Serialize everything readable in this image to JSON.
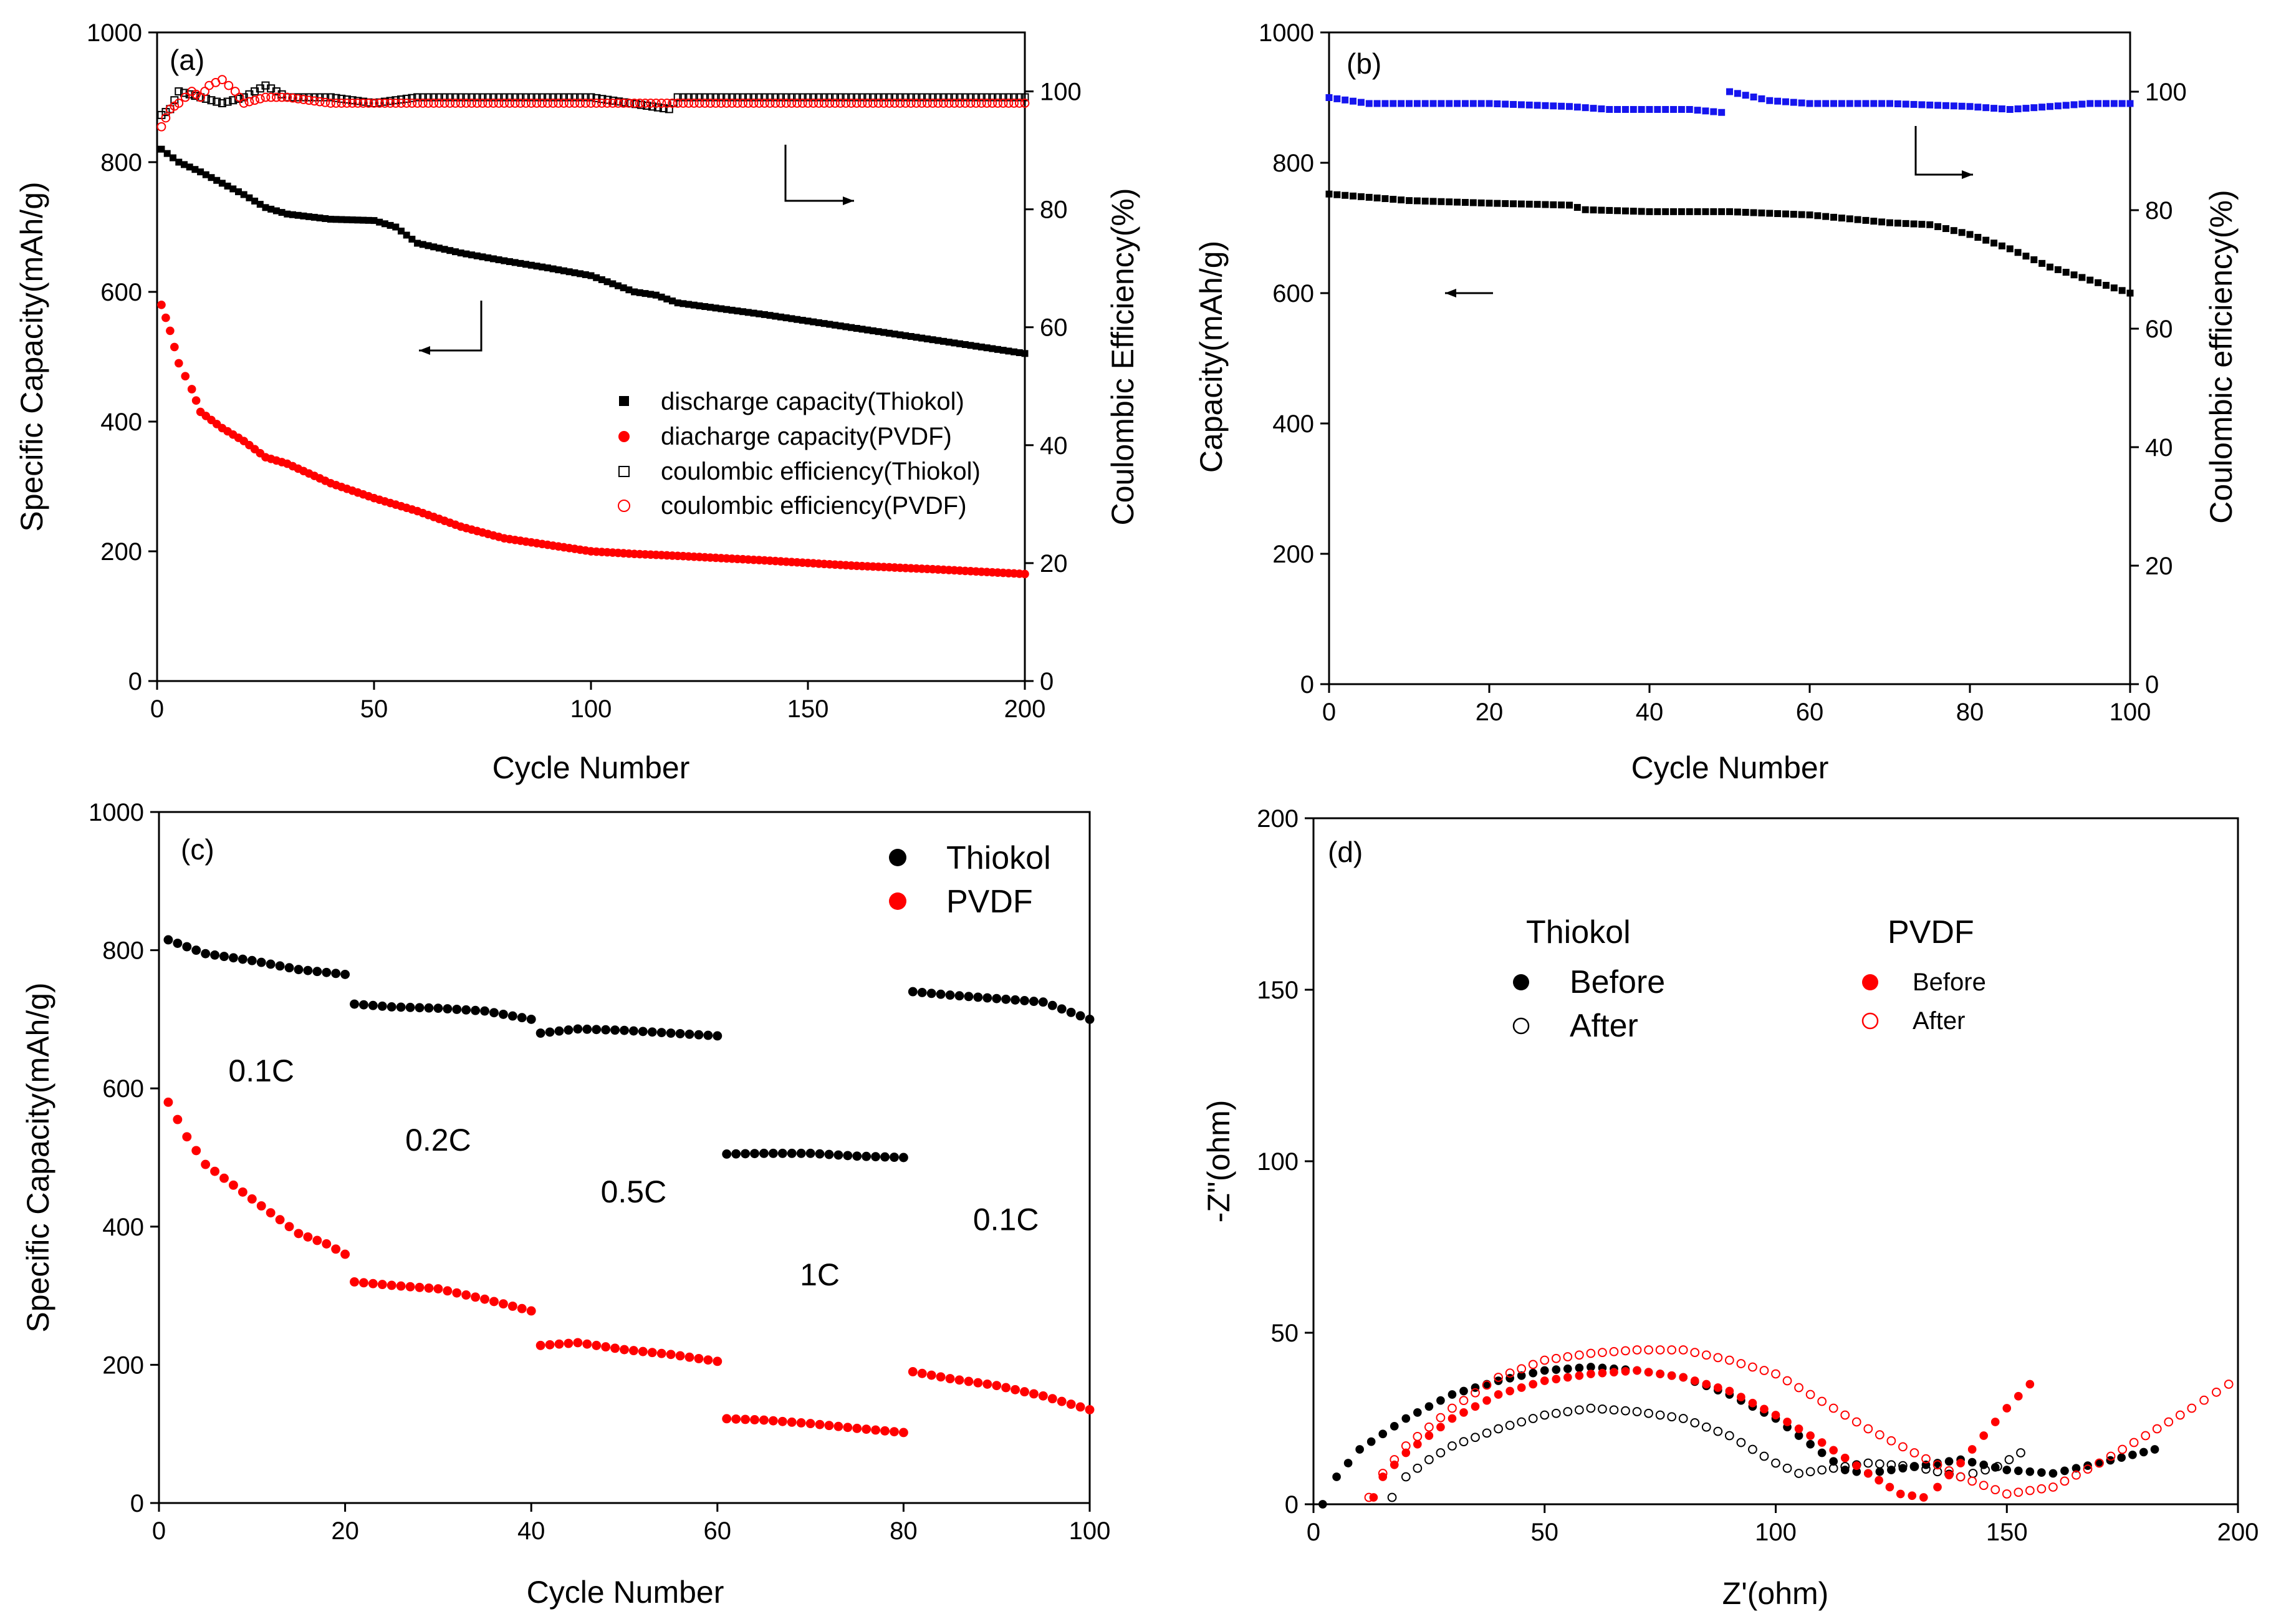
{
  "chart_data": [
    {
      "id": "a",
      "type": "scatter",
      "panel_label": "(a)",
      "xlabel": "Cycle Number",
      "ylabel": "Specific Capacity(mAh/g)",
      "y2label": "Coulombic Efficiency(%)",
      "xlim": [
        0,
        200
      ],
      "ylim": [
        0,
        1000
      ],
      "y2lim": [
        0,
        110
      ],
      "xticks": [
        0,
        50,
        100,
        150,
        200
      ],
      "yticks": [
        0,
        200,
        400,
        600,
        800,
        1000
      ],
      "y2ticks": [
        0,
        20,
        40,
        60,
        80,
        100
      ],
      "series": [
        {
          "name": "discharge capacity(Thiokol)",
          "axis": "left",
          "marker": "filled-square",
          "color": "#000000",
          "x": [
            1,
            5,
            10,
            20,
            25,
            30,
            40,
            50,
            55,
            60,
            70,
            80,
            90,
            100,
            110,
            115,
            120,
            140,
            160,
            180,
            200
          ],
          "y": [
            820,
            800,
            785,
            750,
            730,
            720,
            712,
            710,
            700,
            675,
            660,
            648,
            637,
            625,
            600,
            595,
            583,
            565,
            545,
            525,
            505
          ]
        },
        {
          "name": "diacharge capacity(PVDF)",
          "axis": "left",
          "marker": "filled-circle",
          "color": "#ff0000",
          "x": [
            1,
            3,
            5,
            8,
            10,
            15,
            20,
            25,
            30,
            40,
            50,
            60,
            70,
            80,
            90,
            100,
            110,
            120,
            140,
            160,
            180,
            200
          ],
          "y": [
            580,
            540,
            490,
            450,
            415,
            390,
            370,
            345,
            335,
            305,
            282,
            262,
            238,
            220,
            210,
            200,
            196,
            193,
            186,
            178,
            172,
            165
          ]
        },
        {
          "name": "coulombic efficiency(Thiokol)",
          "axis": "right",
          "marker": "open-square",
          "color": "#000000",
          "x": [
            1,
            3,
            5,
            10,
            15,
            20,
            25,
            30,
            40,
            50,
            60,
            80,
            100,
            118,
            120,
            140,
            160,
            180,
            200
          ],
          "y": [
            96,
            97,
            100,
            99,
            98,
            99,
            101,
            99,
            99,
            98,
            99,
            99,
            99,
            97,
            99,
            99,
            99,
            99,
            99
          ]
        },
        {
          "name": "coulombic efficiency(PVDF)",
          "axis": "right",
          "marker": "open-circle",
          "color": "#ff0000",
          "x": [
            1,
            3,
            5,
            8,
            10,
            12,
            15,
            18,
            20,
            25,
            30,
            40,
            50,
            60,
            80,
            100,
            120,
            140,
            160,
            180,
            200
          ],
          "y": [
            94,
            97,
            98,
            100,
            99,
            101,
            102,
            100,
            98,
            99,
            99,
            98,
            98,
            98,
            98,
            98,
            98,
            98,
            98,
            98,
            98
          ]
        }
      ]
    },
    {
      "id": "b",
      "type": "scatter",
      "panel_label": "(b)",
      "xlabel": "Cycle Number",
      "ylabel": "Capacity(mAh/g)",
      "y2label": "Coulombic efficiency(%)",
      "xlim": [
        0,
        100
      ],
      "ylim": [
        0,
        1000
      ],
      "y2lim": [
        0,
        110
      ],
      "xticks": [
        0,
        20,
        40,
        60,
        80,
        100
      ],
      "yticks": [
        0,
        200,
        400,
        600,
        800,
        1000
      ],
      "y2ticks": [
        0,
        20,
        40,
        60,
        80,
        100
      ],
      "series": [
        {
          "name": "capacity",
          "axis": "left",
          "marker": "filled-square",
          "color": "#000000",
          "x": [
            0,
            10,
            20,
            30,
            32,
            40,
            50,
            60,
            70,
            75,
            80,
            85,
            90,
            95,
            100
          ],
          "y": [
            752,
            742,
            738,
            735,
            728,
            725,
            725,
            720,
            708,
            705,
            690,
            668,
            640,
            620,
            600
          ]
        },
        {
          "name": "coulombic efficiency",
          "axis": "right",
          "marker": "filled-square",
          "color": "#1515ee",
          "x": [
            0,
            5,
            10,
            20,
            30,
            35,
            40,
            45,
            49,
            50,
            55,
            60,
            70,
            80,
            85,
            90,
            95,
            100
          ],
          "y": [
            99,
            98,
            98,
            98,
            97.5,
            97,
            97,
            97,
            96.5,
            100,
            98.5,
            98,
            98,
            97.5,
            97,
            97.5,
            98,
            98
          ]
        }
      ]
    },
    {
      "id": "c",
      "type": "scatter",
      "panel_label": "(c)",
      "xlabel": "Cycle Number",
      "ylabel": "Specific Capacity(mAh/g)",
      "xlim": [
        0,
        100
      ],
      "ylim": [
        0,
        1000
      ],
      "xticks": [
        0,
        20,
        40,
        60,
        80,
        100
      ],
      "yticks": [
        0,
        200,
        400,
        600,
        800,
        1000
      ],
      "rate_labels": [
        {
          "text": "0.1C",
          "x": 11,
          "y": 610
        },
        {
          "text": "0.2C",
          "x": 30,
          "y": 510
        },
        {
          "text": "0.5C",
          "x": 51,
          "y": 435
        },
        {
          "text": "1C",
          "x": 71,
          "y": 315
        },
        {
          "text": "0.1C",
          "x": 91,
          "y": 395
        }
      ],
      "series": [
        {
          "name": "Thiokol",
          "marker": "filled-circle",
          "color": "#000000",
          "x": [
            1,
            5,
            10,
            15,
            20,
            21,
            25,
            30,
            35,
            40,
            41,
            45,
            50,
            55,
            60,
            61,
            65,
            70,
            75,
            80,
            81,
            85,
            90,
            95,
            100
          ],
          "y": [
            815,
            795,
            785,
            772,
            765,
            722,
            718,
            716,
            712,
            700,
            680,
            686,
            684,
            680,
            676,
            505,
            506,
            506,
            502,
            500,
            740,
            735,
            730,
            725,
            700
          ]
        },
        {
          "name": "PVDF",
          "marker": "filled-circle",
          "color": "#ff0000",
          "x": [
            1,
            3,
            5,
            8,
            10,
            13,
            15,
            18,
            20,
            21,
            25,
            30,
            35,
            40,
            41,
            45,
            50,
            55,
            60,
            61,
            65,
            70,
            75,
            80,
            81,
            85,
            90,
            95,
            100
          ],
          "y": [
            580,
            530,
            490,
            460,
            440,
            410,
            390,
            375,
            360,
            320,
            315,
            310,
            295,
            278,
            228,
            232,
            222,
            215,
            205,
            122,
            120,
            115,
            108,
            102,
            190,
            180,
            170,
            155,
            135
          ]
        }
      ]
    },
    {
      "id": "d",
      "type": "scatter",
      "panel_label": "(d)",
      "xlabel": "Z'(ohm)",
      "ylabel": "-Z''(ohm)",
      "xlim": [
        0,
        200
      ],
      "ylim": [
        0,
        200
      ],
      "xticks": [
        0,
        50,
        100,
        150,
        200
      ],
      "yticks": [
        0,
        50,
        100,
        150,
        200
      ],
      "legend_groups": [
        {
          "title": "Thiokol",
          "items": [
            "Before",
            "After"
          ]
        },
        {
          "title": "PVDF",
          "items": [
            "Before",
            "After"
          ]
        }
      ],
      "series": [
        {
          "name": "Thiokol Before",
          "marker": "filled-circle",
          "color": "#000000",
          "x": [
            2,
            5,
            10,
            20,
            30,
            40,
            50,
            60,
            70,
            80,
            90,
            100,
            110,
            115,
            120,
            130,
            140,
            150,
            160,
            170,
            182
          ],
          "y": [
            0,
            8,
            16,
            25,
            32,
            36,
            39,
            40,
            39,
            37,
            32,
            25,
            15,
            10,
            9,
            11,
            13,
            10,
            9,
            12,
            16
          ]
        },
        {
          "name": "Thiokol After",
          "marker": "open-circle",
          "color": "#000000",
          "x": [
            17,
            20,
            25,
            30,
            40,
            50,
            60,
            70,
            80,
            90,
            100,
            105,
            110,
            120,
            130,
            140,
            148,
            153
          ],
          "y": [
            2,
            8,
            13,
            17,
            22,
            26,
            28,
            27,
            25,
            20,
            12,
            9,
            10,
            12,
            11,
            8,
            11,
            15
          ]
        },
        {
          "name": "PVDF Before",
          "marker": "filled-circle",
          "color": "#ff0000",
          "x": [
            13,
            15,
            20,
            30,
            40,
            50,
            60,
            70,
            80,
            90,
            100,
            110,
            120,
            127,
            132,
            135,
            140,
            145,
            150,
            155
          ],
          "y": [
            2,
            8,
            15,
            25,
            32,
            36,
            38,
            39,
            37,
            33,
            26,
            18,
            9,
            3,
            2,
            5,
            12,
            20,
            28,
            35
          ]
        },
        {
          "name": "PVDF After",
          "marker": "open-circle",
          "color": "#ff0000",
          "x": [
            12,
            15,
            20,
            30,
            40,
            50,
            60,
            70,
            80,
            90,
            100,
            110,
            120,
            130,
            140,
            150,
            160,
            170,
            180,
            190,
            198
          ],
          "y": [
            2,
            9,
            17,
            28,
            37,
            42,
            44,
            45,
            45,
            42,
            38,
            30,
            22,
            15,
            8,
            3,
            5,
            12,
            20,
            28,
            35
          ]
        }
      ]
    }
  ]
}
